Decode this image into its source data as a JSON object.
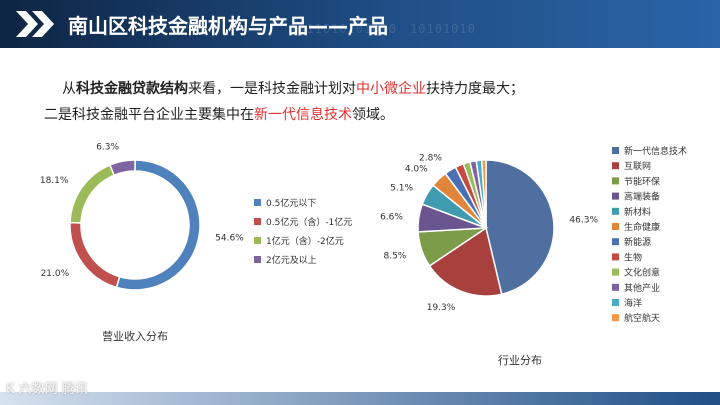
{
  "header": {
    "title": "南山区科技金融机构与产品——产品",
    "binary_texts": [
      "1011010101010",
      "10101010"
    ]
  },
  "intro": {
    "line1_pre": "从",
    "line1_bold": "科技金融贷款结构",
    "line1_mid": "来看，一是科技金融计划对",
    "line1_red": "中小微企业",
    "line1_post": "扶持力度最大；",
    "line2_pre": "二是科技金融平台企业主要集中在",
    "line2_red": "新一代信息技术",
    "line2_post": "领域。"
  },
  "chart_data": [
    {
      "type": "donut",
      "title": "营业收入分布",
      "categories": [
        "0.5亿元以下",
        "0.5亿元（含）-1亿元",
        "1亿元（含）-2亿元",
        "2亿元及以上"
      ],
      "values": [
        54.6,
        21.0,
        18.1,
        6.3
      ],
      "value_labels": [
        "54.6%",
        "21.0%",
        "18.1%",
        "6.3%"
      ],
      "colors": [
        "#4f81bd",
        "#c0504d",
        "#9bbb59",
        "#8064a2"
      ],
      "legend_position": "right"
    },
    {
      "type": "pie",
      "title": "行业分布",
      "categories": [
        "新一代信息技术",
        "互联网",
        "节能环保",
        "高端装备",
        "新材料",
        "生命健康",
        "新能源",
        "生物",
        "文化创意",
        "其他产业",
        "海洋",
        "航空航天"
      ],
      "values": [
        46.3,
        19.3,
        8.5,
        6.6,
        5.1,
        4.0,
        2.8,
        2.0,
        1.6,
        1.5,
        1.3,
        1.0
      ],
      "value_labels": [
        "46.3%",
        "19.3%",
        "8.5%",
        "6.6%",
        "5.1%",
        "4.0%",
        "2.8%",
        "",
        "",
        "",
        "",
        ""
      ],
      "colors": [
        "#4f6fa0",
        "#a8413d",
        "#7d9c4a",
        "#6a5590",
        "#3f9bb0",
        "#e0853a",
        "#4a6fb2",
        "#c44a42",
        "#9bbb59",
        "#8064a2",
        "#4bacc6",
        "#f79646"
      ],
      "legend_position": "right"
    }
  ],
  "footer": {
    "watermark": "K 六数网 腾讯"
  }
}
